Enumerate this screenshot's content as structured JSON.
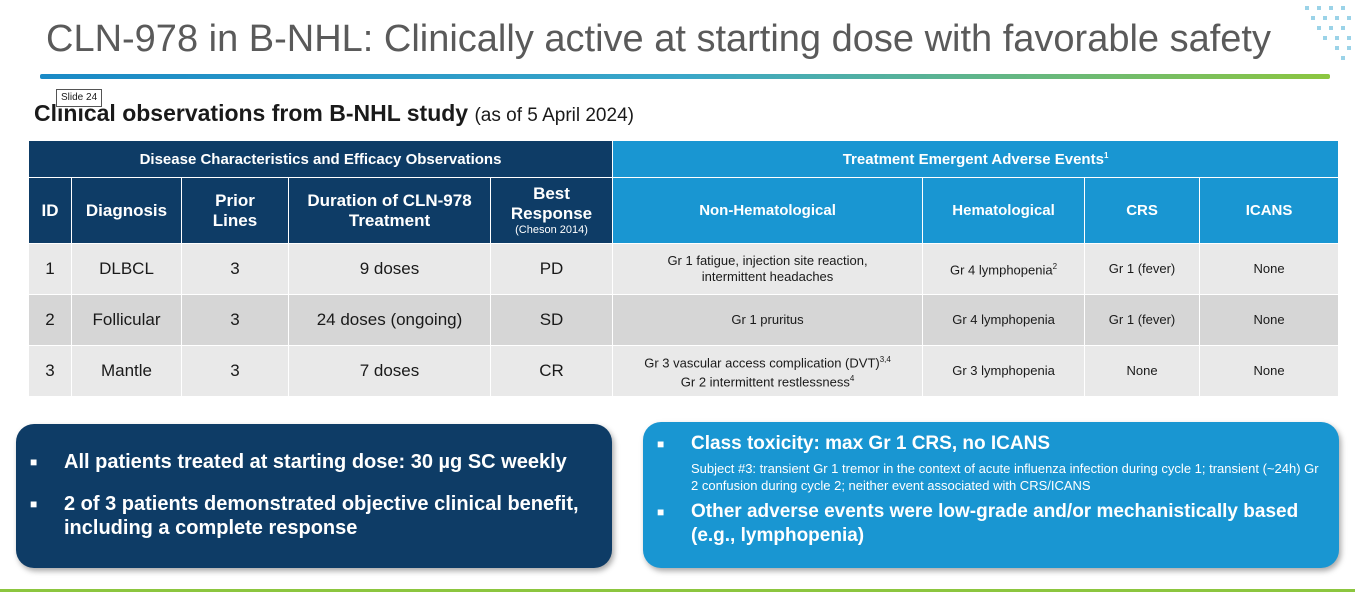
{
  "title": "CLN-978 in B-NHL: Clinically active at starting dose with favorable safety",
  "subtitle": {
    "bold": "Clinical observations from B-NHL study",
    "date": "(as of 5 April 2024)"
  },
  "slide_tag": "Slide 24",
  "table": {
    "group_left": "Disease Characteristics and Efficacy Observations",
    "group_right": "Treatment Emergent Adverse Events",
    "group_right_sup": "1",
    "headers": {
      "id": "ID",
      "diagnosis": "Diagnosis",
      "prior_lines": "Prior Lines",
      "duration": "Duration of CLN-978 Treatment",
      "best_response": "Best Response",
      "best_response_note": "(Cheson 2014)",
      "non_heme": "Non-Hematological",
      "heme": "Hematological",
      "crs": "CRS",
      "icans": "ICANS"
    },
    "rows": [
      {
        "id": "1",
        "diagnosis": "DLBCL",
        "prior_lines": "3",
        "duration": "9 doses",
        "best_response": "PD",
        "non_heme": "Gr 1 fatigue, injection site reaction, intermittent headaches",
        "non_heme2": "",
        "non_heme_sup": "",
        "non_heme2_sup": "",
        "heme": "Gr 4 lymphopenia",
        "heme_sup": "2",
        "crs": "Gr 1 (fever)",
        "icans": "None"
      },
      {
        "id": "2",
        "diagnosis": "Follicular",
        "prior_lines": "3",
        "duration": "24 doses (ongoing)",
        "best_response": "SD",
        "non_heme": "Gr 1 pruritus",
        "non_heme2": "",
        "non_heme_sup": "",
        "non_heme2_sup": "",
        "heme": "Gr 4 lymphopenia",
        "heme_sup": "",
        "crs": "Gr 1 (fever)",
        "icans": "None"
      },
      {
        "id": "3",
        "diagnosis": "Mantle",
        "prior_lines": "3",
        "duration": "7 doses",
        "best_response": "CR",
        "non_heme": "Gr 3 vascular access complication (DVT)",
        "non_heme_sup": "3,4",
        "non_heme2": "Gr 2 intermittent restlessness",
        "non_heme2_sup": "4",
        "heme": "Gr 3 lymphopenia",
        "heme_sup": "",
        "crs": "None",
        "icans": "None"
      }
    ]
  },
  "box_left": {
    "bullets": [
      "All patients treated at starting dose: 30 µg SC weekly",
      "2 of 3 patients demonstrated objective clinical benefit, including a complete response"
    ]
  },
  "box_right": {
    "bullet1": "Class toxicity: max Gr 1 CRS, no ICANS",
    "bullet1_detail": "Subject #3: transient Gr 1 tremor  in the context of acute influenza infection during cycle 1; transient (~24h) Gr 2 confusion during cycle 2; neither event associated with CRS/ICANS",
    "bullet2": "Other adverse events were low-grade and/or mechanistically based (e.g., lymphopenia)"
  },
  "colors": {
    "navy": "#0e3c66",
    "blue": "#1996d2",
    "green": "#8cc63f"
  }
}
